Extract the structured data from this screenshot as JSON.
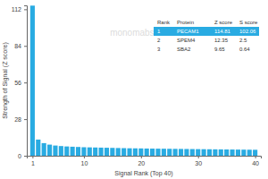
{
  "chart_data": {
    "type": "bar",
    "x": [
      1,
      2,
      3,
      4,
      5,
      6,
      7,
      8,
      9,
      10,
      11,
      12,
      13,
      14,
      15,
      16,
      17,
      18,
      19,
      20,
      21,
      22,
      23,
      24,
      25,
      26,
      27,
      28,
      29,
      30,
      31,
      32,
      33,
      34,
      35,
      36,
      37,
      38,
      39,
      40
    ],
    "values": [
      114.81,
      12.35,
      9.65,
      8.5,
      7.8,
      7.4,
      7.1,
      6.9,
      6.7,
      6.5,
      6.4,
      6.3,
      6.2,
      6.1,
      6.0,
      5.9,
      5.8,
      5.7,
      5.65,
      5.6,
      5.5,
      5.45,
      5.4,
      5.35,
      5.3,
      5.25,
      5.2,
      5.15,
      5.1,
      5.05,
      5.0,
      4.95,
      4.9,
      4.85,
      4.8,
      4.75,
      4.7,
      4.65,
      4.6,
      4.55
    ],
    "color": "#29abe2",
    "x_label": "Signal Rank (Top 40)",
    "y_label": "Strength of Signal (Z score)",
    "xlim": [
      0,
      41
    ],
    "xticks": [
      1,
      10,
      20,
      30,
      40
    ],
    "ylim": [
      0,
      115
    ],
    "yticks": [
      0,
      28,
      56,
      84,
      112
    ],
    "annotations": [
      "monomabs"
    ]
  },
  "table": {
    "columns": [
      "Rank",
      "Protein",
      "Z score",
      "S score"
    ],
    "rows": [
      [
        1,
        "PECAM1",
        114.81,
        102.06
      ],
      [
        2,
        "SPEM4",
        12.35,
        2.5
      ],
      [
        3,
        "SBA2",
        9.65,
        0.64
      ]
    ]
  }
}
